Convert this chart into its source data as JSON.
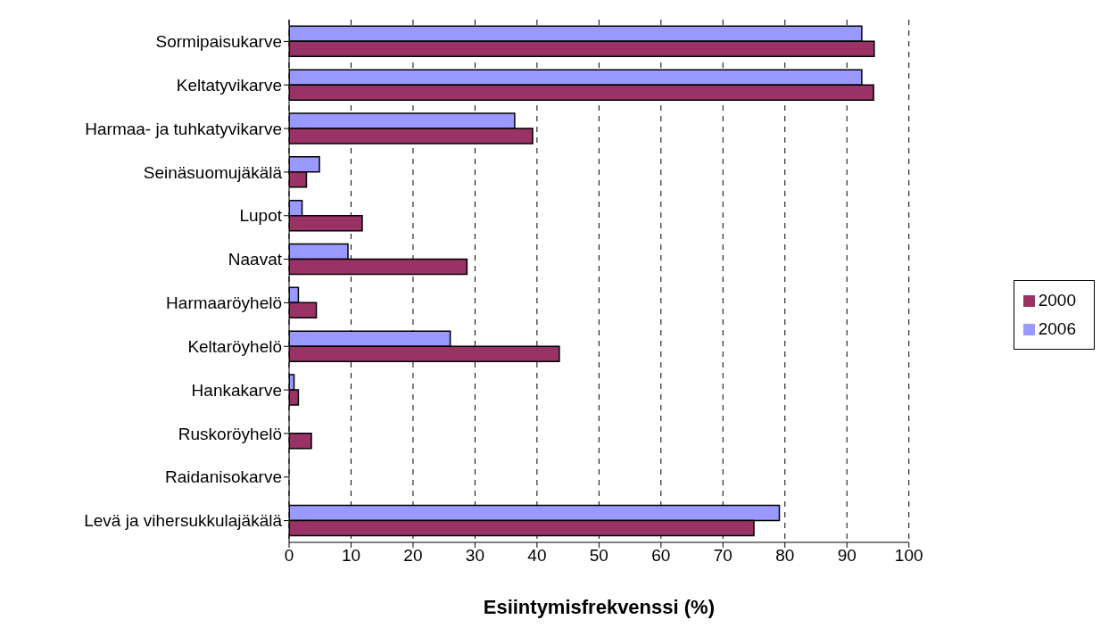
{
  "chart_data": {
    "type": "bar",
    "orientation": "horizontal",
    "xlabel": "Esiintymisfrekvenssi (%)",
    "categories": [
      "Sormipaisukarve",
      "Keltatyvikarve",
      "Harmaa- ja tuhkatyvikarve",
      "Seinäsuomujäkälä",
      "Lupot",
      "Naavat",
      "Harmaaröyhelö",
      "Keltaröyhelö",
      "Hankakarve",
      "Ruskoröyhelö",
      "Raidanisokarve",
      "Levä ja vihersukkulajäkälä"
    ],
    "series": [
      {
        "name": "2006",
        "color": "#9999ff",
        "values": [
          92.4,
          92.4,
          36.4,
          4.9,
          2.1,
          9.5,
          1.5,
          26.0,
          0.8,
          0,
          0,
          79.1
        ]
      },
      {
        "name": "2000",
        "color": "#993366",
        "values": [
          94.4,
          94.3,
          39.3,
          2.8,
          11.8,
          28.7,
          4.4,
          43.6,
          1.5,
          3.6,
          0,
          75.0
        ]
      }
    ],
    "xlim": [
      0,
      100
    ],
    "xticks": [
      0,
      10,
      20,
      30,
      40,
      50,
      60,
      70,
      80,
      90,
      100
    ],
    "grid": "x",
    "legend": "right"
  }
}
